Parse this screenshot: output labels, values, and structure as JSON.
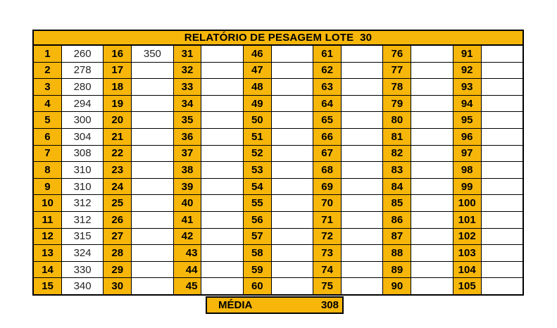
{
  "title": "RELATÓRIO DE PESAGEM LOTE  30",
  "footer": {
    "label": "MÉDIA",
    "value": "308"
  },
  "colors": {
    "accent": "#F6B60A",
    "grid_border": "#000000",
    "page_background": "#FFFFFF",
    "cell_background": "#FFFFFF",
    "number_text": "#000000",
    "value_text": "#262626"
  },
  "columns": [
    {
      "numbers": [
        "1",
        "2",
        "3",
        "4",
        "5",
        "6",
        "7",
        "8",
        "9",
        "10",
        "11",
        "12",
        "13",
        "14",
        "15"
      ],
      "values": [
        "260",
        "278",
        "280",
        "294",
        "300",
        "304",
        "308",
        "310",
        "310",
        "312",
        "312",
        "315",
        "324",
        "330",
        "340"
      ],
      "right_aligned": []
    },
    {
      "numbers": [
        "16",
        "17",
        "18",
        "19",
        "20",
        "21",
        "22",
        "23",
        "24",
        "25",
        "26",
        "27",
        "28",
        "29",
        "30"
      ],
      "values": [
        "350"
      ],
      "right_aligned": []
    },
    {
      "numbers": [
        "31",
        "32",
        "33",
        "34",
        "35",
        "36",
        "37",
        "38",
        "39",
        "40",
        "41",
        "42",
        "43",
        "44",
        "45"
      ],
      "values": [],
      "right_aligned": [
        "43",
        "44",
        "45"
      ]
    },
    {
      "numbers": [
        "46",
        "47",
        "48",
        "49",
        "50",
        "51",
        "52",
        "53",
        "54",
        "55",
        "56",
        "57",
        "58",
        "59",
        "60"
      ],
      "values": [],
      "right_aligned": []
    },
    {
      "numbers": [
        "61",
        "62",
        "63",
        "64",
        "65",
        "66",
        "67",
        "68",
        "69",
        "70",
        "71",
        "72",
        "73",
        "74",
        "75"
      ],
      "values": [],
      "right_aligned": []
    },
    {
      "numbers": [
        "76",
        "77",
        "78",
        "79",
        "80",
        "81",
        "82",
        "83",
        "84",
        "85",
        "86",
        "87",
        "88",
        "89",
        "90"
      ],
      "values": [],
      "right_aligned": []
    },
    {
      "numbers": [
        "91",
        "92",
        "93",
        "94",
        "95",
        "96",
        "97",
        "98",
        "99",
        "100",
        "101",
        "102",
        "103",
        "104",
        "105"
      ],
      "values": [],
      "right_aligned": []
    }
  ]
}
